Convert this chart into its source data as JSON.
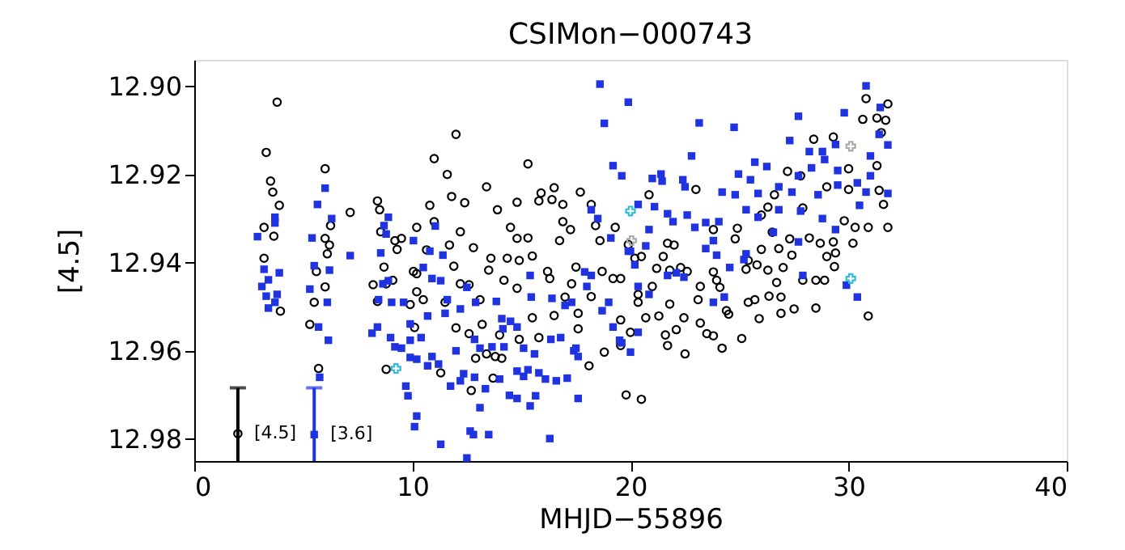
{
  "chart_data": {
    "type": "scatter",
    "title": "CSIMon−000743",
    "xlabel": "MHJD−55896",
    "ylabel": "[4.5]",
    "xlim": [
      0,
      40
    ],
    "xticks": [
      0,
      10,
      20,
      30,
      40
    ],
    "ylim": [
      12.985,
      12.894
    ],
    "yticks": [
      {
        "value": 12.9,
        "label": "12.90"
      },
      {
        "value": 12.92,
        "label": "12.92"
      },
      {
        "value": 12.94,
        "label": "12.94"
      },
      {
        "value": 12.96,
        "label": "12.96"
      },
      {
        "value": 12.98,
        "label": "12.98"
      }
    ],
    "grid": false,
    "series": [
      {
        "color": "#000000",
        "marker": "circle",
        "x": [
          3.8,
          3.3,
          3.5,
          3.6,
          3.9,
          3.2,
          3.65,
          3.2,
          3.95,
          6.0,
          6.25,
          6.0,
          6.2,
          6.1,
          5.6,
          6.0,
          5.5,
          5.3,
          5.7,
          7.15,
          8.4,
          8.5,
          8.55,
          9.2,
          9.5,
          9.3,
          8.7,
          8.2,
          8.8,
          8.4,
          9.1,
          8.8,
          10.2,
          9.9,
          10.1,
          12.0,
          11.0,
          11.6,
          15.3,
          13.4,
          11.8,
          12.4,
          10.8,
          13.9,
          14.8,
          15.9,
          15.8,
          16.4,
          16.9,
          16.5,
          17.7,
          18.2,
          10.2,
          11.0,
          12.2,
          14.5,
          14.8,
          15.3,
          16.9,
          17.25,
          16.75,
          18.4,
          19.3,
          18.6,
          10.65,
          11.7,
          12.8,
          13.6,
          14.35,
          14.9,
          15.5,
          10.05,
          11.9,
          13.5,
          14.2,
          16.2,
          17.5,
          18.7,
          19.2,
          10.2,
          12.2,
          12.6,
          14.8,
          16.3,
          17.3,
          18.2,
          10.5,
          11.5,
          13.1,
          15.5,
          17.0,
          17.6,
          12.0,
          13.2,
          14.0,
          14.9,
          15.8,
          16.5,
          17.6,
          12.6,
          12.9,
          13.4,
          13.8,
          14.1,
          11.3,
          13.7,
          12.7,
          18.1,
          18.8,
          19.8,
          30.8,
          31.8,
          30.65,
          31.3,
          31.7,
          31.5,
          28.4,
          29.3,
          30.0,
          31.3,
          27.2,
          27.8,
          23.0,
          20.85,
          26.6,
          29.0,
          30.0,
          31.4,
          31.6,
          27.9,
          26.3,
          26.0,
          29.8,
          30.3,
          30.9,
          31.8,
          23.8,
          24.9,
          19.9,
          21.7,
          22.0,
          24.8,
          26.5,
          27.3,
          28.2,
          28.7,
          29.3,
          30.2,
          26.0,
          26.8,
          20.2,
          20.5,
          21.5,
          29.0,
          29.4,
          27.4,
          25.4,
          25.8,
          21.2,
          21.8,
          22.3,
          22.6,
          23.8,
          25.3,
          26.3,
          27.0,
          29.35,
          19.55,
          23.95,
          26.7,
          27.9,
          28.5,
          28.9,
          20.35,
          21.0,
          23.2,
          24.1,
          20.35,
          21.8,
          23.1,
          25.7,
          26.35,
          26.9,
          19.55,
          20.7,
          21.3,
          22.45,
          24.4,
          24.5,
          25.4,
          25.9,
          26.9,
          27.5,
          28.5,
          30.9,
          20.0,
          21.6,
          22.1,
          23.2,
          23.5,
          23.8,
          25.1,
          19.55,
          21.7,
          24.2,
          22.5,
          20.5
        ],
        "values": [
          12.9036,
          12.915,
          12.9215,
          12.924,
          12.927,
          12.932,
          12.934,
          12.939,
          12.951,
          12.9187,
          12.9316,
          12.9345,
          12.936,
          12.938,
          12.942,
          12.9455,
          12.949,
          12.954,
          12.964,
          12.9286,
          12.926,
          12.928,
          12.933,
          12.935,
          12.9345,
          12.937,
          12.941,
          12.945,
          12.9448,
          12.9488,
          12.944,
          12.9642,
          12.9425,
          12.9495,
          12.9547,
          12.9109,
          12.9164,
          12.92,
          12.9176,
          12.9228,
          12.925,
          12.9264,
          12.927,
          12.928,
          12.9263,
          12.9242,
          12.926,
          12.9257,
          12.9268,
          12.923,
          12.924,
          12.9268,
          12.932,
          12.9307,
          12.933,
          12.932,
          12.9345,
          12.9344,
          12.9307,
          12.9325,
          12.935,
          12.9316,
          12.932,
          12.935,
          12.9371,
          12.936,
          12.9366,
          12.939,
          12.939,
          12.9395,
          12.9385,
          12.942,
          12.9408,
          12.9417,
          12.944,
          12.942,
          12.941,
          12.942,
          12.9436,
          12.9466,
          12.9448,
          12.945,
          12.9458,
          12.9436,
          12.9448,
          12.9477,
          12.9484,
          12.949,
          12.9484,
          12.9525,
          12.9478,
          12.9515,
          12.9548,
          12.954,
          12.9564,
          12.9574,
          12.957,
          12.952,
          12.955,
          12.9561,
          12.9617,
          12.9607,
          12.9613,
          12.9617,
          12.965,
          12.9662,
          12.969,
          12.9634,
          12.9603,
          12.97,
          12.9028,
          12.904,
          12.9075,
          12.9072,
          12.9077,
          12.9105,
          12.912,
          12.9115,
          12.9187,
          12.918,
          12.9193,
          12.9203,
          12.9234,
          12.9246,
          12.9246,
          12.9228,
          12.9234,
          12.9236,
          12.9268,
          12.9276,
          12.9274,
          12.9292,
          12.9305,
          12.932,
          12.932,
          12.932,
          12.9325,
          12.9322,
          12.9359,
          12.9356,
          12.936,
          12.9346,
          12.9331,
          12.9346,
          12.9344,
          12.9356,
          12.9353,
          12.9356,
          12.937,
          12.9368,
          12.939,
          12.9386,
          12.9386,
          12.9386,
          12.9378,
          12.9383,
          12.9395,
          12.9405,
          12.9413,
          12.9417,
          12.9411,
          12.942,
          12.9421,
          12.9415,
          12.9417,
          12.9411,
          12.9409,
          12.9436,
          12.944,
          12.9445,
          12.944,
          12.944,
          12.944,
          12.9472,
          12.9454,
          12.9454,
          12.9456,
          12.949,
          12.9494,
          12.9484,
          12.9484,
          12.9476,
          12.9478,
          12.953,
          12.9525,
          12.9521,
          12.9525,
          12.9509,
          12.9517,
          12.949,
          12.9527,
          12.9515,
          12.9505,
          12.9503,
          12.9521,
          12.9558,
          12.9564,
          12.9552,
          12.9537,
          12.9561,
          12.9566,
          12.9572,
          12.9588,
          12.9588,
          12.9594,
          12.9607,
          12.971
        ]
      },
      {
        "color": "#1f33e0",
        "marker": "square",
        "x": [
          6.0,
          5.65,
          6.3,
          3.7,
          3.7,
          2.9,
          5.4,
          7.15,
          8.55,
          8.7,
          8.9,
          8.8,
          3.2,
          3.9,
          3.4,
          3.1,
          3.8,
          3.3,
          3.7,
          3.4,
          5.5,
          6.2,
          5.3,
          6.1,
          5.7,
          6.15,
          5.75,
          8.9,
          8.45,
          9.05,
          9.6,
          8.15,
          8.4,
          9.0,
          9.2,
          9.5,
          9.9,
          9.9,
          9.7,
          9.8,
          10.2,
          10.1,
          8.65,
          10.05,
          18.6,
          19.9,
          18.8,
          19.2,
          19.6,
          18.2,
          18.5,
          19.1,
          19.9,
          11.05,
          10.8,
          11.4,
          10.9,
          11.3,
          10.5,
          11.6,
          12.2,
          12.5,
          12.9,
          13.85,
          15.45,
          15.4,
          16.4,
          17.0,
          17.3,
          18.0,
          18.2,
          17.9,
          19.0,
          18.7,
          19.2,
          19.6,
          10.7,
          9.9,
          10.4,
          11.5,
          12.0,
          12.85,
          14.1,
          14.5,
          14.8,
          14.15,
          13.65,
          14.2,
          13.1,
          15.1,
          15.6,
          16.35,
          16.8,
          17.4,
          17.6,
          17.5,
          10.2,
          10.9,
          10.7,
          11.2,
          11.75,
          12.35,
          12.85,
          12.2,
          13.35,
          14.0,
          14.8,
          15.1,
          15.3,
          15.8,
          16.1,
          16.6,
          17.1,
          14.45,
          14.8,
          15.65,
          15.4,
          17.6,
          13.1,
          12.65,
          12.8,
          13.5,
          16.3,
          11.3,
          12.5,
          30.8,
          23.15,
          24.75,
          27.7,
          29.8,
          22.8,
          27.3,
          28.2,
          28.8,
          29.4,
          31.45,
          31.4,
          31.8,
          31.0,
          28.9,
          27.7,
          28.3,
          29.5,
          31.0,
          25.7,
          26.25,
          24.95,
          25.5,
          21.0,
          21.4,
          21.45,
          22.4,
          22.5,
          24.2,
          24.8,
          25.85,
          26.8,
          27.4,
          28.6,
          29.5,
          30.4,
          30.8,
          31.8,
          20.35,
          21.1,
          21.7,
          21.95,
          22.6,
          23.45,
          24.05,
          25.3,
          25.85,
          26.8,
          27.8,
          28.8,
          30.5,
          20.85,
          22.95,
          23.8,
          26.55,
          27.7,
          29.4,
          20.0,
          20.7,
          23.45,
          23.95,
          25.3,
          20.2,
          24.55,
          25.2,
          21.7,
          22.1,
          22.45,
          27.9,
          20.35,
          20.85,
          24.3,
          23.8,
          29.9,
          30.4,
          20.35,
          20.0,
          19.5
        ],
        "values": [
          12.9231,
          12.9268,
          12.93,
          12.9297,
          12.931,
          12.9341,
          12.9344,
          12.9384,
          12.9378,
          12.9316,
          12.9297,
          12.9335,
          12.9415,
          12.9423,
          12.9439,
          12.9454,
          12.9472,
          12.9476,
          12.949,
          12.9503,
          12.9407,
          12.9417,
          12.946,
          12.949,
          12.9546,
          12.9576,
          12.966,
          12.9441,
          12.9484,
          12.949,
          12.949,
          12.956,
          12.9546,
          12.957,
          12.9591,
          12.9594,
          12.9615,
          12.9576,
          12.968,
          12.9702,
          12.9748,
          12.9772,
          12.9448,
          12.935,
          12.8995,
          12.9036,
          12.9084,
          12.918,
          12.9203,
          12.928,
          12.93,
          12.9344,
          12.9374,
          12.9317,
          12.9374,
          12.9383,
          12.9436,
          12.9441,
          12.9411,
          12.9484,
          12.9505,
          12.9456,
          12.949,
          12.9488,
          12.9478,
          12.9429,
          12.9481,
          12.9497,
          12.949,
          12.9454,
          12.9429,
          12.9421,
          12.949,
          12.9509,
          12.9546,
          12.9582,
          12.9521,
          12.9539,
          12.957,
          12.9515,
          12.96,
          12.9574,
          12.9527,
          12.9533,
          12.9546,
          12.955,
          12.9591,
          12.9591,
          12.9594,
          12.9594,
          12.9607,
          12.9574,
          12.957,
          12.96,
          12.9613,
          12.9594,
          12.9619,
          12.9613,
          12.9634,
          12.963,
          12.968,
          12.9652,
          12.966,
          12.9668,
          12.9686,
          12.9664,
          12.9646,
          12.9658,
          12.9643,
          12.965,
          12.9664,
          12.9668,
          12.9662,
          12.9701,
          12.9708,
          12.9702,
          12.9725,
          12.9708,
          12.9729,
          12.9782,
          12.979,
          12.979,
          12.9799,
          12.9812,
          12.9843,
          12.8999,
          12.9083,
          12.9093,
          12.9068,
          12.906,
          12.9158,
          12.9123,
          12.9148,
          12.9148,
          12.9132,
          12.9048,
          12.9109,
          12.9133,
          12.9158,
          12.9166,
          12.9203,
          12.9185,
          12.9191,
          12.9203,
          12.9172,
          12.9182,
          12.9199,
          12.9212,
          12.9209,
          12.9199,
          12.9215,
          12.9212,
          12.9228,
          12.924,
          12.9246,
          12.9243,
          12.9228,
          12.924,
          12.9246,
          12.9224,
          12.9219,
          12.924,
          12.9243,
          12.9268,
          12.9273,
          12.9289,
          12.9307,
          12.9292,
          12.9309,
          12.9307,
          12.928,
          12.9297,
          12.928,
          12.9283,
          12.93,
          12.927,
          12.9325,
          12.932,
          12.935,
          12.9331,
          12.9353,
          12.9325,
          12.9374,
          12.9362,
          12.9368,
          12.9383,
          12.938,
          12.9405,
          12.9411,
          12.9393,
          12.9429,
          12.9423,
          12.9433,
          12.9429,
          12.9454,
          12.9472,
          12.9478,
          12.949,
          12.9451,
          12.9478,
          12.9558,
          12.9603,
          12.9576
        ]
      },
      {
        "color": "#33bbdd",
        "marker": "cross",
        "x": [
          9.25,
          20.0,
          30.1
        ],
        "values": [
          12.964,
          12.9283,
          12.9436
        ]
      },
      {
        "color": "#aaaaaa",
        "marker": "cross",
        "x": [
          20.05,
          30.1
        ],
        "values": [
          12.935,
          12.9136
        ]
      },
      {
        "name": "[4.5]",
        "color": "#000000",
        "marker": "circle",
        "x": [
          2.0
        ],
        "values": [
          12.9788
        ],
        "errors": [
          [
            12.9684,
            12.985
          ]
        ]
      },
      {
        "name": "[3.6]",
        "color": "#1f33e0",
        "marker": "square",
        "x": [
          5.5
        ],
        "values": [
          12.979
        ],
        "errors": [
          [
            12.9684,
            12.985
          ]
        ]
      }
    ]
  }
}
